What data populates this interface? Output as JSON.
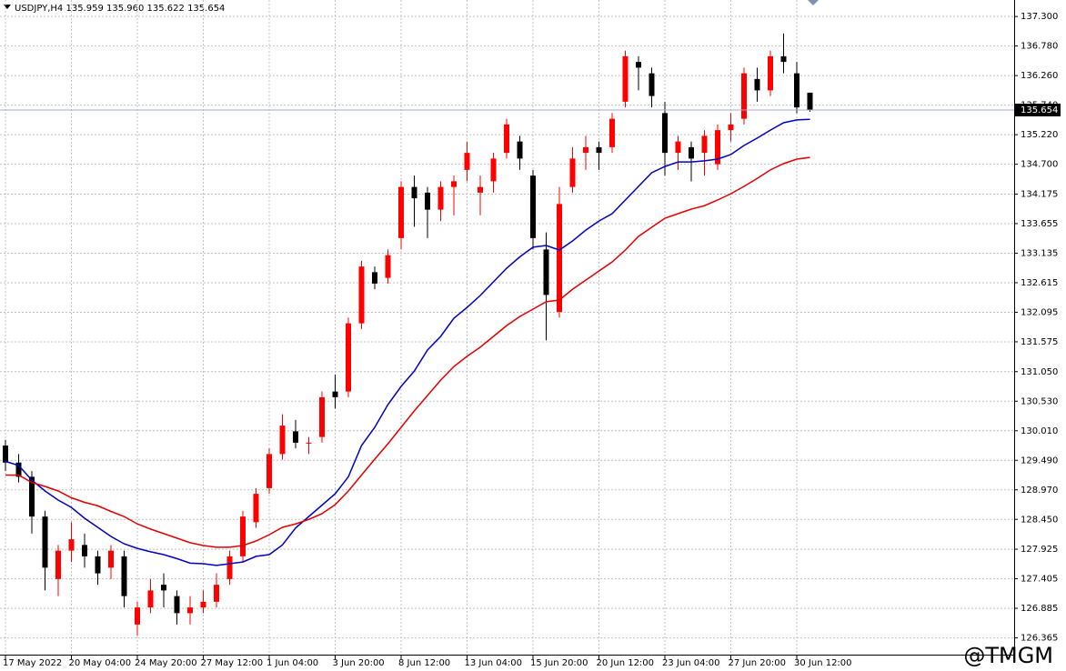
{
  "chart_data": {
    "type": "candlestick",
    "header": "USDJPY,H4  135.959 135.960 135.622 135.654",
    "watermark": "@TMGM",
    "categories": [
      "17 May 2022",
      null,
      null,
      null,
      null,
      "20 May 04:00",
      null,
      null,
      null,
      null,
      "24 May 20:00",
      null,
      null,
      null,
      null,
      "27 May 12:00",
      null,
      null,
      null,
      null,
      "1 Jun 04:00",
      null,
      null,
      null,
      null,
      "3 Jun 20:00",
      null,
      null,
      null,
      null,
      "8 Jun 12:00",
      null,
      null,
      null,
      null,
      "13 Jun 04:00",
      null,
      null,
      null,
      null,
      "15 Jun 20:00",
      null,
      null,
      null,
      null,
      "20 Jun 12:00",
      null,
      null,
      null,
      null,
      "23 Jun 04:00",
      null,
      null,
      null,
      null,
      "27 Jun 20:00",
      null,
      null,
      null,
      null,
      "30 Jun 12:00",
      null
    ],
    "open": [
      129.75,
      129.45,
      129.2,
      128.5,
      127.4,
      127.9,
      128.0,
      127.8,
      127.6,
      127.8,
      126.6,
      126.9,
      127.3,
      127.1,
      126.8,
      126.9,
      127.0,
      127.4,
      127.8,
      128.4,
      129.0,
      129.6,
      130.0,
      129.8,
      129.9,
      130.7,
      130.7,
      131.9,
      132.8,
      132.7,
      133.4,
      134.3,
      134.2,
      133.9,
      134.3,
      134.6,
      134.2,
      134.4,
      134.9,
      135.1,
      134.5,
      133.2,
      132.1,
      134.3,
      134.9,
      135.0,
      135.0,
      135.8,
      136.5,
      136.3,
      135.6,
      134.9,
      135.0,
      134.9,
      134.7,
      135.3,
      135.5,
      136.2,
      136.0,
      136.6,
      136.3,
      135.959
    ],
    "high": [
      129.85,
      129.6,
      129.3,
      128.6,
      128.0,
      128.4,
      128.2,
      127.9,
      128.0,
      127.9,
      127.0,
      127.4,
      127.5,
      127.2,
      127.1,
      127.2,
      127.5,
      127.9,
      128.6,
      129.0,
      129.7,
      130.3,
      130.2,
      129.9,
      130.7,
      131.0,
      132.0,
      133.0,
      132.9,
      133.2,
      134.4,
      134.5,
      134.3,
      134.4,
      134.5,
      135.1,
      134.5,
      134.9,
      135.5,
      135.2,
      134.6,
      133.5,
      134.3,
      135.0,
      135.2,
      135.1,
      135.6,
      136.7,
      136.6,
      136.4,
      135.8,
      135.2,
      135.1,
      135.3,
      135.4,
      135.6,
      136.4,
      136.4,
      136.7,
      137.0,
      136.5,
      135.96
    ],
    "low": [
      129.3,
      129.1,
      128.2,
      127.2,
      127.1,
      127.7,
      127.6,
      127.3,
      127.4,
      126.9,
      126.4,
      126.8,
      126.9,
      126.6,
      126.6,
      126.8,
      126.9,
      127.3,
      127.7,
      128.3,
      128.9,
      129.5,
      129.7,
      129.6,
      129.8,
      130.4,
      130.6,
      131.8,
      132.5,
      132.6,
      133.2,
      133.6,
      133.4,
      133.7,
      133.8,
      134.4,
      133.8,
      134.2,
      134.8,
      134.6,
      133.2,
      131.6,
      132.0,
      134.2,
      134.6,
      134.6,
      134.9,
      135.7,
      136.0,
      135.7,
      134.5,
      134.6,
      134.4,
      134.5,
      134.6,
      135.1,
      135.4,
      135.8,
      135.9,
      136.3,
      135.6,
      135.622
    ],
    "close": [
      129.45,
      129.2,
      128.5,
      127.6,
      127.9,
      128.1,
      127.8,
      127.5,
      127.9,
      127.1,
      126.9,
      127.2,
      127.2,
      126.8,
      126.9,
      127.0,
      127.3,
      127.8,
      128.5,
      128.9,
      129.6,
      130.1,
      129.8,
      129.8,
      130.6,
      130.6,
      131.9,
      132.9,
      132.6,
      133.1,
      134.3,
      134.1,
      133.9,
      134.3,
      134.4,
      134.9,
      134.3,
      134.8,
      135.4,
      134.8,
      133.4,
      132.4,
      134.0,
      134.8,
      135.0,
      134.9,
      135.5,
      136.6,
      136.4,
      135.9,
      134.9,
      135.1,
      134.8,
      135.2,
      135.3,
      135.4,
      136.3,
      136.0,
      136.6,
      136.5,
      135.7,
      135.654
    ],
    "up_color": "#ff0000",
    "down_color": "#000000",
    "series": [
      {
        "color": "#0000c0",
        "values": [
          129.47,
          129.4,
          129.14,
          128.95,
          128.79,
          128.66,
          128.47,
          128.31,
          128.15,
          128.02,
          127.94,
          127.88,
          127.83,
          127.76,
          127.68,
          127.67,
          127.64,
          127.67,
          127.7,
          127.8,
          127.83,
          128.0,
          128.3,
          128.5,
          128.7,
          128.9,
          129.2,
          129.75,
          130.07,
          130.47,
          130.79,
          131.06,
          131.43,
          131.67,
          131.99,
          132.18,
          132.39,
          132.63,
          132.87,
          133.07,
          133.24,
          133.27,
          133.19,
          133.35,
          133.54,
          133.7,
          133.83,
          134.07,
          134.31,
          134.55,
          134.66,
          134.74,
          134.74,
          134.76,
          134.79,
          134.87,
          135.03,
          135.16,
          135.3,
          135.43,
          135.48,
          135.49
        ]
      },
      {
        "color": "#e00000",
        "values": [
          129.23,
          129.23,
          129.1,
          129.03,
          128.95,
          128.83,
          128.75,
          128.69,
          128.59,
          128.5,
          128.37,
          128.28,
          128.2,
          128.12,
          128.04,
          127.99,
          127.96,
          127.96,
          127.99,
          128.07,
          128.18,
          128.31,
          128.37,
          128.45,
          128.55,
          128.71,
          128.95,
          129.23,
          129.51,
          129.78,
          130.07,
          130.36,
          130.63,
          130.9,
          131.14,
          131.32,
          131.48,
          131.67,
          131.86,
          132.02,
          132.15,
          132.28,
          132.31,
          132.5,
          132.66,
          132.82,
          132.98,
          133.19,
          133.43,
          133.59,
          133.75,
          133.83,
          133.91,
          133.97,
          134.07,
          134.18,
          134.31,
          134.45,
          134.6,
          134.71,
          134.79,
          134.82
        ]
      }
    ],
    "current_price": 135.654,
    "ylim": [
      126.07,
      137.59
    ],
    "yticks": [
      {
        "value": 137.3,
        "label": "137.300"
      },
      {
        "value": 136.78,
        "label": "136.780"
      },
      {
        "value": 136.26,
        "label": "136.260"
      },
      {
        "value": 135.74,
        "label": "135.740"
      },
      {
        "value": 135.22,
        "label": "135.220"
      },
      {
        "value": 134.7,
        "label": "134.700"
      },
      {
        "value": 134.175,
        "label": "134.175"
      },
      {
        "value": 133.655,
        "label": "133.655"
      },
      {
        "value": 133.135,
        "label": "133.135"
      },
      {
        "value": 132.615,
        "label": "132.615"
      },
      {
        "value": 132.095,
        "label": "132.095"
      },
      {
        "value": 131.575,
        "label": "131.575"
      },
      {
        "value": 131.05,
        "label": "131.050"
      },
      {
        "value": 130.53,
        "label": "130.530"
      },
      {
        "value": 130.01,
        "label": "130.010"
      },
      {
        "value": 129.49,
        "label": "129.490"
      },
      {
        "value": 128.97,
        "label": "128.970"
      },
      {
        "value": 128.45,
        "label": "128.450"
      },
      {
        "value": 127.925,
        "label": "127.925"
      },
      {
        "value": 127.405,
        "label": "127.405"
      },
      {
        "value": 126.885,
        "label": "126.885"
      },
      {
        "value": 126.365,
        "label": "126.365"
      }
    ],
    "grid": true
  }
}
